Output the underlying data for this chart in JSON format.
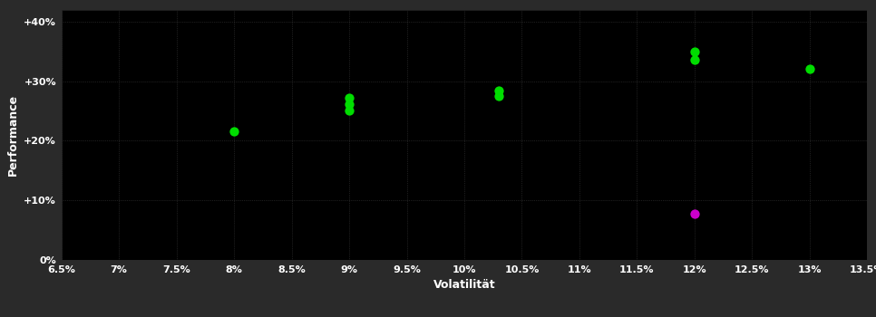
{
  "background_color": "#2a2a2a",
  "plot_bg_color": "#000000",
  "grid_color": "#3a3a3a",
  "text_color": "#ffffff",
  "xlabel": "Volatilität",
  "ylabel": "Performance",
  "xlim": [
    0.065,
    0.135
  ],
  "ylim": [
    0.0,
    0.42
  ],
  "xticks": [
    0.065,
    0.07,
    0.075,
    0.08,
    0.085,
    0.09,
    0.095,
    0.1,
    0.105,
    0.11,
    0.115,
    0.12,
    0.125,
    0.13,
    0.135
  ],
  "yticks": [
    0.0,
    0.1,
    0.2,
    0.3,
    0.4
  ],
  "ytick_labels": [
    "0%",
    "+10%",
    "+20%",
    "+30%",
    "+40%"
  ],
  "xtick_labels": [
    "6.5%",
    "7%",
    "7.5%",
    "8%",
    "8.5%",
    "9%",
    "9.5%",
    "10%",
    "10.5%",
    "11%",
    "11.5%",
    "12%",
    "12.5%",
    "13%",
    "13.5%"
  ],
  "green_points": [
    [
      0.08,
      0.215
    ],
    [
      0.09,
      0.272
    ],
    [
      0.09,
      0.261
    ],
    [
      0.09,
      0.25
    ],
    [
      0.103,
      0.284
    ],
    [
      0.103,
      0.275
    ],
    [
      0.12,
      0.35
    ],
    [
      0.12,
      0.336
    ],
    [
      0.13,
      0.32
    ]
  ],
  "magenta_points": [
    [
      0.12,
      0.078
    ]
  ],
  "green_color": "#00dd00",
  "magenta_color": "#cc00cc",
  "marker_size": 55,
  "font_size_axis_label": 9,
  "font_size_tick": 8
}
